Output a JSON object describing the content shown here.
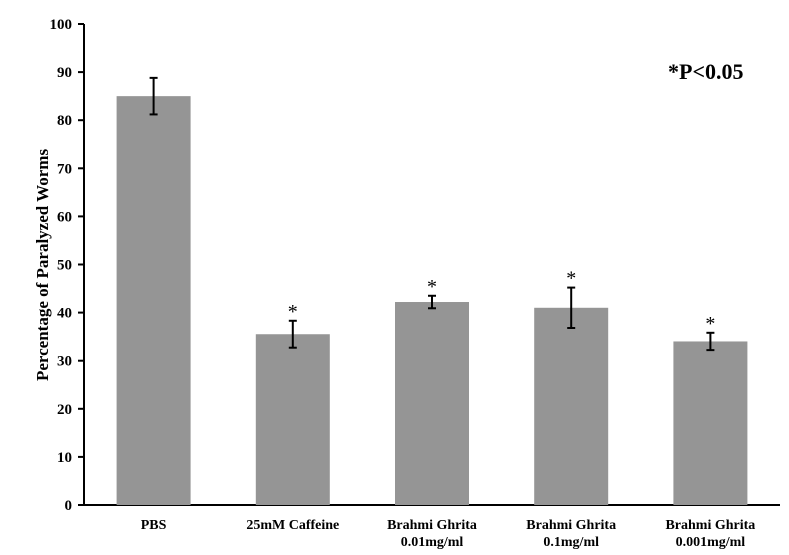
{
  "chart_data": {
    "type": "bar",
    "title": "",
    "xlabel": "",
    "ylabel": "Percentage of Paralyzed Worms",
    "ylim": [
      0,
      100
    ],
    "yticks": [
      0,
      10,
      20,
      30,
      40,
      50,
      60,
      70,
      80,
      90,
      100
    ],
    "grid": false,
    "categories": [
      [
        "PBS"
      ],
      [
        "25mM Caffeine"
      ],
      [
        "Brahmi Ghrita",
        "0.01mg/ml"
      ],
      [
        "Brahmi Ghrita",
        "0.1mg/ml"
      ],
      [
        "Brahmi Ghrita",
        "0.001mg/ml"
      ]
    ],
    "values": [
      85,
      35.5,
      42.2,
      41,
      34
    ],
    "errors": [
      3.8,
      2.8,
      1.3,
      4.2,
      1.8
    ],
    "significance": [
      "",
      "*",
      "*",
      "*",
      "*"
    ],
    "annotation": "*P<0.05",
    "colors": {
      "bar": "#959595",
      "axis": "#000000"
    }
  }
}
